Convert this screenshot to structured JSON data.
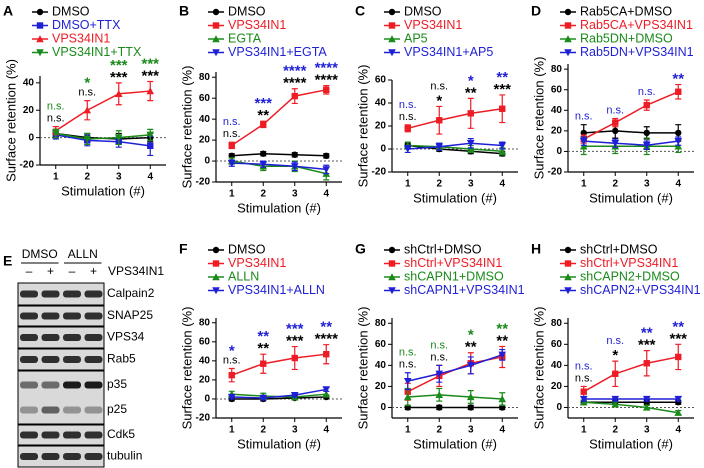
{
  "chart_data": [
    {
      "type": "line",
      "panel": "A",
      "xlabel": "Stimulation (#)",
      "ylabel": "Surface retention (%)",
      "x": [
        1,
        2,
        3,
        4
      ],
      "xlim": [
        0.5,
        4.5
      ],
      "xticks": [
        1,
        2,
        3,
        4
      ],
      "ylim": [
        -20,
        45
      ],
      "yticks": [
        -20,
        0,
        20,
        40
      ],
      "reference_line": 0,
      "series": [
        {
          "name": "DMSO",
          "color": "#000000",
          "marker": "circle",
          "values": [
            3,
            0,
            -1,
            0
          ],
          "errors": [
            3,
            3,
            4,
            3
          ]
        },
        {
          "name": "DMSO+TTX",
          "color": "#1f1fd6",
          "marker": "square",
          "values": [
            2,
            -2,
            -3,
            -6
          ],
          "errors": [
            3,
            4,
            4,
            7
          ]
        },
        {
          "name": "VPS34IN1",
          "color": "#ee1c25",
          "marker": "triangle",
          "values": [
            5,
            20,
            32,
            34
          ],
          "errors": [
            3,
            7,
            8,
            7
          ]
        },
        {
          "name": "VPS34IN1+TTX",
          "color": "#1a8a1a",
          "marker": "triangle-down",
          "values": [
            3,
            -1,
            0,
            2
          ],
          "errors": [
            3,
            4,
            5,
            4
          ]
        }
      ],
      "annotations": [
        {
          "x": 1,
          "labels": [
            {
              "text": "n.s.",
              "color": "#1a8a1a"
            },
            {
              "text": "n.s.",
              "color": "#000000"
            }
          ]
        },
        {
          "x": 2,
          "labels": [
            {
              "text": "*",
              "color": "#1a8a1a"
            },
            {
              "text": "n.s.",
              "color": "#000000"
            }
          ]
        },
        {
          "x": 3,
          "labels": [
            {
              "text": "***",
              "color": "#1a8a1a"
            },
            {
              "text": "***",
              "color": "#000000"
            }
          ]
        },
        {
          "x": 4,
          "labels": [
            {
              "text": "***",
              "color": "#1a8a1a"
            },
            {
              "text": "***",
              "color": "#000000"
            }
          ]
        }
      ]
    },
    {
      "type": "line",
      "panel": "B",
      "xlabel": "Stimulation (#)",
      "ylabel": "Surface retention (%)",
      "x": [
        1,
        2,
        3,
        4
      ],
      "xlim": [
        0.5,
        4.5
      ],
      "xticks": [
        1,
        2,
        3,
        4
      ],
      "ylim": [
        -20,
        85
      ],
      "yticks": [
        -20,
        0,
        20,
        40,
        60,
        80
      ],
      "reference_line": 0,
      "series": [
        {
          "name": "DMSO",
          "color": "#000000",
          "marker": "circle",
          "values": [
            5,
            7,
            6,
            5
          ],
          "errors": [
            2,
            2,
            2,
            2
          ]
        },
        {
          "name": "VPS34IN1",
          "color": "#ee1c25",
          "marker": "square",
          "values": [
            15,
            35,
            62,
            68
          ],
          "errors": [
            3,
            3,
            7,
            4
          ]
        },
        {
          "name": "EGTA",
          "color": "#1a8a1a",
          "marker": "triangle",
          "values": [
            0,
            -5,
            -5,
            -12
          ],
          "errors": [
            3,
            4,
            5,
            6
          ]
        },
        {
          "name": "VPS34IN1+EGTA",
          "color": "#1f1fd6",
          "marker": "triangle-down",
          "values": [
            -2,
            -3,
            -5,
            -8
          ],
          "errors": [
            3,
            3,
            4,
            4
          ]
        }
      ],
      "annotations": [
        {
          "x": 1,
          "labels": [
            {
              "text": "n.s.",
              "color": "#1f1fd6"
            },
            {
              "text": "n.s.",
              "color": "#000000"
            }
          ]
        },
        {
          "x": 2,
          "labels": [
            {
              "text": "***",
              "color": "#1f1fd6"
            },
            {
              "text": "**",
              "color": "#000000"
            }
          ]
        },
        {
          "x": 3,
          "labels": [
            {
              "text": "****",
              "color": "#1f1fd6"
            },
            {
              "text": "****",
              "color": "#000000"
            }
          ]
        },
        {
          "x": 4,
          "labels": [
            {
              "text": "****",
              "color": "#1f1fd6"
            },
            {
              "text": "****",
              "color": "#000000"
            }
          ]
        }
      ]
    },
    {
      "type": "line",
      "panel": "C",
      "xlabel": "Stimulation (#)",
      "ylabel": "Surface retention (%)",
      "x": [
        1,
        2,
        3,
        4
      ],
      "xlim": [
        0.5,
        4.5
      ],
      "xticks": [
        1,
        2,
        3,
        4
      ],
      "ylim": [
        -20,
        60
      ],
      "yticks": [
        -20,
        0,
        20,
        40,
        60
      ],
      "reference_line": 0,
      "series": [
        {
          "name": "DMSO",
          "color": "#000000",
          "marker": "circle",
          "values": [
            3,
            0,
            -2,
            -4
          ],
          "errors": [
            2,
            2,
            2,
            2
          ]
        },
        {
          "name": "VPS34IN1",
          "color": "#ee1c25",
          "marker": "square",
          "values": [
            18,
            25,
            31,
            35
          ],
          "errors": [
            3,
            12,
            13,
            12
          ]
        },
        {
          "name": "AP5",
          "color": "#1a8a1a",
          "marker": "triangle",
          "values": [
            3,
            2,
            0,
            -2
          ],
          "errors": [
            3,
            3,
            3,
            3
          ]
        },
        {
          "name": "VPS34IN1+AP5",
          "color": "#1f1fd6",
          "marker": "triangle-down",
          "values": [
            0,
            2,
            5,
            3
          ],
          "errors": [
            3,
            3,
            4,
            3
          ]
        }
      ],
      "annotations": [
        {
          "x": 1,
          "labels": [
            {
              "text": "n.s.",
              "color": "#1f1fd6"
            },
            {
              "text": "n.s.",
              "color": "#000000"
            }
          ]
        },
        {
          "x": 2,
          "labels": [
            {
              "text": "n.s.",
              "color": "#000000"
            },
            {
              "text": "*",
              "color": "#000000"
            }
          ]
        },
        {
          "x": 3,
          "labels": [
            {
              "text": "*",
              "color": "#1f1fd6"
            },
            {
              "text": "**",
              "color": "#000000"
            }
          ]
        },
        {
          "x": 4,
          "labels": [
            {
              "text": "**",
              "color": "#1f1fd6"
            },
            {
              "text": "***",
              "color": "#000000"
            }
          ]
        }
      ]
    },
    {
      "type": "line",
      "panel": "D",
      "xlabel": "Stimulation (#)",
      "ylabel": "Surface retention (%)",
      "x": [
        1,
        2,
        3,
        4
      ],
      "xlim": [
        0.5,
        4.5
      ],
      "xticks": [
        1,
        2,
        3,
        4
      ],
      "ylim": [
        -20,
        85
      ],
      "yticks": [
        -20,
        0,
        20,
        40,
        60,
        80
      ],
      "reference_line": 0,
      "series": [
        {
          "name": "Rab5CA+DMSO",
          "color": "#000000",
          "marker": "circle",
          "values": [
            18,
            20,
            18,
            18
          ],
          "errors": [
            8,
            7,
            6,
            8
          ]
        },
        {
          "name": "Rab5CA+VPS34IN1",
          "color": "#ee1c25",
          "marker": "square",
          "values": [
            12,
            28,
            45,
            58
          ],
          "errors": [
            4,
            4,
            5,
            7
          ]
        },
        {
          "name": "Rab5DN+DMSO",
          "color": "#1a8a1a",
          "marker": "triangle",
          "values": [
            5,
            5,
            5,
            5
          ],
          "errors": [
            8,
            7,
            8,
            6
          ]
        },
        {
          "name": "Rab5DN+VPS34IN1",
          "color": "#1f1fd6",
          "marker": "triangle-down",
          "values": [
            10,
            8,
            6,
            10
          ],
          "errors": [
            4,
            4,
            4,
            4
          ]
        }
      ],
      "annotations": [
        {
          "x": 1,
          "labels": [
            {
              "text": "n.s.",
              "color": "#1f1fd6"
            }
          ]
        },
        {
          "x": 2,
          "labels": [
            {
              "text": "n.s.",
              "color": "#1f1fd6"
            }
          ]
        },
        {
          "x": 3,
          "labels": [
            {
              "text": "n.s.",
              "color": "#1f1fd6"
            }
          ]
        },
        {
          "x": 4,
          "labels": [
            {
              "text": "**",
              "color": "#1f1fd6"
            }
          ]
        }
      ]
    },
    {
      "type": "line",
      "panel": "F",
      "xlabel": "Stimulation (#)",
      "ylabel": "Surface retention (%)",
      "x": [
        1,
        2,
        3,
        4
      ],
      "xlim": [
        0.5,
        4.5
      ],
      "xticks": [
        1,
        2,
        3,
        4
      ],
      "ylim": [
        -20,
        85
      ],
      "yticks": [
        -20,
        0,
        20,
        40,
        60,
        80
      ],
      "reference_line": 0,
      "series": [
        {
          "name": "DMSO",
          "color": "#000000",
          "marker": "circle",
          "values": [
            0,
            0,
            1,
            2
          ],
          "errors": [
            2,
            2,
            2,
            2
          ]
        },
        {
          "name": "VPS34IN1",
          "color": "#ee1c25",
          "marker": "square",
          "values": [
            25,
            37,
            43,
            47
          ],
          "errors": [
            7,
            10,
            12,
            10
          ]
        },
        {
          "name": "ALLN",
          "color": "#1a8a1a",
          "marker": "triangle",
          "values": [
            5,
            3,
            2,
            5
          ],
          "errors": [
            3,
            3,
            3,
            3
          ]
        },
        {
          "name": "VPS34IN1+ALLN",
          "color": "#1f1fd6",
          "marker": "triangle-down",
          "values": [
            2,
            1,
            4,
            10
          ],
          "errors": [
            2,
            2,
            2,
            2
          ]
        }
      ],
      "annotations": [
        {
          "x": 1,
          "labels": [
            {
              "text": "*",
              "color": "#1f1fd6"
            },
            {
              "text": "n.s.",
              "color": "#000000"
            }
          ]
        },
        {
          "x": 2,
          "labels": [
            {
              "text": "**",
              "color": "#1f1fd6"
            },
            {
              "text": "**",
              "color": "#000000"
            }
          ]
        },
        {
          "x": 3,
          "labels": [
            {
              "text": "***",
              "color": "#1f1fd6"
            },
            {
              "text": "***",
              "color": "#000000"
            }
          ]
        },
        {
          "x": 4,
          "labels": [
            {
              "text": "**",
              "color": "#1f1fd6"
            },
            {
              "text": "****",
              "color": "#000000"
            }
          ]
        }
      ]
    },
    {
      "type": "line",
      "panel": "G",
      "xlabel": "Stimulation (#)",
      "ylabel": "Surface retention (%)",
      "x": [
        1,
        2,
        3,
        4
      ],
      "xlim": [
        0.5,
        4.5
      ],
      "xticks": [
        1,
        2,
        3,
        4
      ],
      "ylim": [
        -10,
        85
      ],
      "yticks": [
        0,
        20,
        40,
        60,
        80
      ],
      "reference_line": 0,
      "series": [
        {
          "name": "shCtrl+DMSO",
          "color": "#000000",
          "marker": "circle",
          "values": [
            0,
            0,
            0,
            0
          ],
          "errors": [
            2,
            2,
            2,
            2
          ]
        },
        {
          "name": "shCtrl+VPS34IN1",
          "color": "#ee1c25",
          "marker": "square",
          "values": [
            15,
            30,
            42,
            48
          ],
          "errors": [
            8,
            10,
            10,
            10
          ]
        },
        {
          "name": "shCAPN1+DMSO",
          "color": "#1a8a1a",
          "marker": "triangle",
          "values": [
            10,
            12,
            10,
            8
          ],
          "errors": [
            8,
            6,
            6,
            6
          ]
        },
        {
          "name": "shCAPN1+VPS34IN1",
          "color": "#1f1fd6",
          "marker": "triangle-down",
          "values": [
            25,
            32,
            40,
            50
          ],
          "errors": [
            8,
            8,
            8,
            5
          ]
        }
      ],
      "annotations": [
        {
          "x": 1,
          "labels": [
            {
              "text": "n.s.",
              "color": "#1a8a1a"
            },
            {
              "text": "n.s.",
              "color": "#000000"
            }
          ]
        },
        {
          "x": 2,
          "labels": [
            {
              "text": "n.s.",
              "color": "#1a8a1a"
            },
            {
              "text": "n.s.",
              "color": "#000000"
            }
          ]
        },
        {
          "x": 3,
          "labels": [
            {
              "text": "*",
              "color": "#1a8a1a"
            },
            {
              "text": "**",
              "color": "#000000"
            }
          ]
        },
        {
          "x": 4,
          "labels": [
            {
              "text": "**",
              "color": "#1a8a1a"
            },
            {
              "text": "**",
              "color": "#000000"
            }
          ]
        }
      ]
    },
    {
      "type": "line",
      "panel": "H",
      "xlabel": "Stimulation (#)",
      "ylabel": "Surface retention (%)",
      "x": [
        1,
        2,
        3,
        4
      ],
      "xlim": [
        0.5,
        4.5
      ],
      "xticks": [
        1,
        2,
        3,
        4
      ],
      "ylim": [
        -10,
        85
      ],
      "yticks": [
        0,
        20,
        40,
        60,
        80
      ],
      "reference_line": 0,
      "series": [
        {
          "name": "shCtrl+DMSO",
          "color": "#000000",
          "marker": "circle",
          "values": [
            5,
            5,
            5,
            5
          ],
          "errors": [
            2,
            2,
            2,
            2
          ]
        },
        {
          "name": "shCtrl+VPS34IN1",
          "color": "#ee1c25",
          "marker": "square",
          "values": [
            15,
            32,
            42,
            48
          ],
          "errors": [
            5,
            12,
            12,
            12
          ]
        },
        {
          "name": "shCAPN2+DMSO",
          "color": "#1a8a1a",
          "marker": "triangle",
          "values": [
            5,
            3,
            0,
            -5
          ],
          "errors": [
            2,
            2,
            2,
            2
          ]
        },
        {
          "name": "shCAPN2+VPS34IN1",
          "color": "#1f1fd6",
          "marker": "triangle-down",
          "values": [
            8,
            8,
            8,
            8
          ],
          "errors": [
            2,
            2,
            2,
            2
          ]
        }
      ],
      "annotations": [
        {
          "x": 1,
          "labels": [
            {
              "text": "n.s.",
              "color": "#1f1fd6"
            },
            {
              "text": "n.s.",
              "color": "#000000"
            }
          ]
        },
        {
          "x": 2,
          "labels": [
            {
              "text": "n.s.",
              "color": "#1f1fd6"
            },
            {
              "text": "*",
              "color": "#000000"
            }
          ]
        },
        {
          "x": 3,
          "labels": [
            {
              "text": "**",
              "color": "#1f1fd6"
            },
            {
              "text": "***",
              "color": "#000000"
            }
          ]
        },
        {
          "x": 4,
          "labels": [
            {
              "text": "**",
              "color": "#1f1fd6"
            },
            {
              "text": "***",
              "color": "#000000"
            }
          ]
        }
      ]
    }
  ],
  "blot": {
    "panel": "E",
    "groups": [
      "DMSO",
      "ALLN"
    ],
    "signs": [
      "–",
      "+",
      "–",
      "+"
    ],
    "treatment": "VPS34IN1",
    "proteins": [
      "Calpain2",
      "SNAP25",
      "VPS34",
      "Rab5",
      "p35",
      "p25",
      "Cdk5",
      "tubulin"
    ]
  }
}
